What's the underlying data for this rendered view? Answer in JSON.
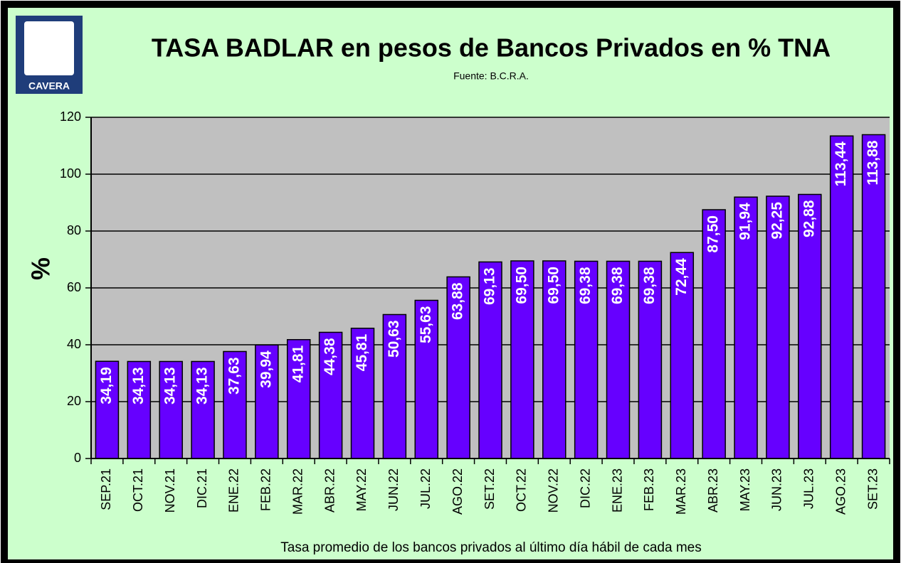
{
  "chart_data": {
    "type": "bar",
    "title": "TASA BADLAR en pesos de Bancos Privados en % TNA",
    "subtitle": "Fuente:  B.C.R.A.",
    "logo": "CAVERA",
    "ylabel": "%",
    "xlabel": "Tasa promedio de los bancos privados al último día hábil de cada mes",
    "categories": [
      "SEP.21",
      "OCT.21",
      "NOV.21",
      "DIC.21",
      "ENE.22",
      "FEB.22",
      "MAR.22",
      "ABR.22",
      "MAY.22",
      "JUN.22",
      "JUL.22",
      "AGO.22",
      "SET.22",
      "OCT.22",
      "NOV.22",
      "DIC.22",
      "ENE.23",
      "FEB.23",
      "MAR.23",
      "ABR.23",
      "MAY.23",
      "JUN.23",
      "JUL.23",
      "AGO.23",
      "SET.23"
    ],
    "values": [
      34.19,
      34.13,
      34.13,
      34.13,
      37.63,
      39.94,
      41.81,
      44.38,
      45.81,
      50.63,
      55.63,
      63.88,
      69.13,
      69.5,
      69.5,
      69.38,
      69.38,
      69.38,
      72.44,
      87.5,
      91.94,
      92.25,
      92.88,
      113.44,
      113.88
    ],
    "value_labels": [
      "34,19",
      "34,13",
      "34,13",
      "34,13",
      "37,63",
      "39,94",
      "41,81",
      "44,38",
      "45,81",
      "50,63",
      "55,63",
      "63,88",
      "69,13",
      "69,50",
      "69,50",
      "69,38",
      "69,38",
      "69,38",
      "72,44",
      "87,50",
      "91,94",
      "92,25",
      "92,88",
      "113,44",
      "113,88"
    ],
    "color": "#6600ff",
    "ylim": [
      0,
      120
    ],
    "yticks": [
      0,
      20,
      40,
      60,
      80,
      100,
      120
    ],
    "grid": true
  }
}
